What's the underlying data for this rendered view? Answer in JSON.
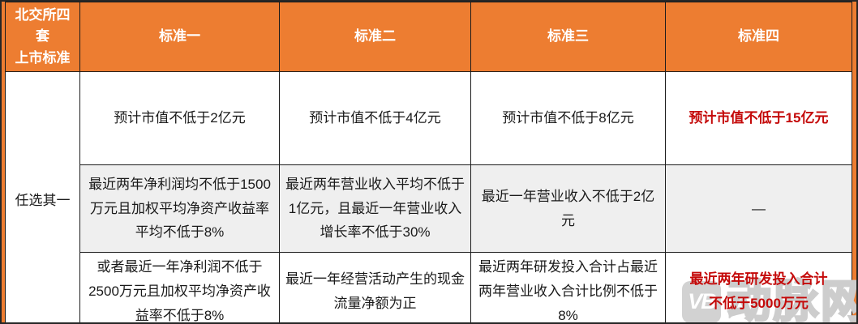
{
  "chart_data": {
    "type": "table",
    "title": "北交所四套上市标准",
    "corner_header": "北交所四套\n上市标准",
    "column_headers": [
      "标准一",
      "标准二",
      "标准三",
      "标准四"
    ],
    "row_group_label": "任选其一",
    "rows": [
      [
        "预计市值不低于2亿元",
        "预计市值不低于4亿元",
        "预计市值不低于8亿元",
        "预计市值不低于15亿元"
      ],
      [
        "最近两年净利润均不低于1500万元且加权平均净资产收益率平均不低于8%",
        "最近两年营业收入平均不低于1亿元，且最近一年营业收入增长率不低于30%",
        "最近一年营业收入不低于2亿元",
        "—"
      ],
      [
        "或者最近一年净利润不低于2500万元且加权平均净资产收益率不低于8%",
        "最近一年经营活动产生的现金流量净额为正",
        "最近两年研发投入合计占最近两年营业收入合计比例不低于8%",
        "最近两年研发投入合计不低于5000万元"
      ]
    ],
    "emphasized_cells": [
      "row0-标准四",
      "row2-标准四"
    ],
    "layout_hints": {
      "header_bg": "#ED7D31",
      "alt_row_bg": "#EFEFEF",
      "emphasis_color": "#C40909",
      "border_color": "#1C1C1C",
      "outer_frame_color": "#ED7D31"
    }
  },
  "watermark": {
    "logo_text": "VB",
    "site_name": "动脉网"
  }
}
